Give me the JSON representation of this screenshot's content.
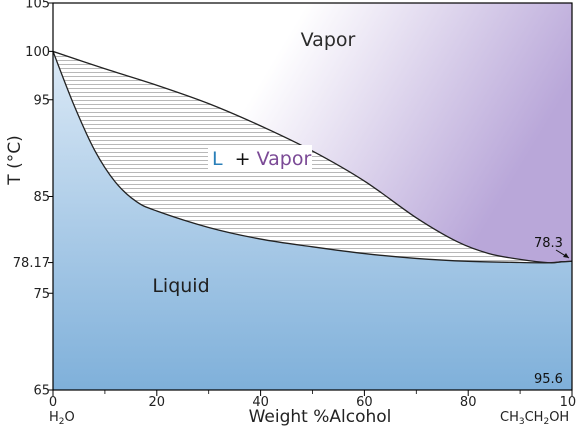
{
  "chart_data": {
    "type": "phase-diagram",
    "title": "",
    "xlabel": "Weight %Alcohol",
    "ylabel": "T (°C)",
    "xlim": [
      0,
      100
    ],
    "ylim": [
      65,
      105
    ],
    "x_ticks": [
      0,
      20,
      40,
      60,
      80,
      100
    ],
    "y_ticks": [
      {
        "value": 65,
        "label": "65"
      },
      {
        "value": 75,
        "label": "75"
      },
      {
        "value": 78.17,
        "label": "78.17"
      },
      {
        "value": 85,
        "label": "85"
      },
      {
        "value": 95,
        "label": "95"
      },
      {
        "value": 100,
        "label": "100"
      },
      {
        "value": 105,
        "label": "105"
      }
    ],
    "x_end_labels": {
      "left": {
        "pre": "H",
        "sub": "2",
        "post": "O"
      },
      "right": {
        "pre": "CH",
        "sub": "3",
        "post": "CH",
        "sub2": "2",
        "post2": "OH"
      }
    },
    "regions": {
      "vapor": "Vapor",
      "liquid": "Liquid",
      "two_phase_l": "L",
      "two_phase_plus": "+",
      "two_phase_vapor": "Vapor"
    },
    "annotations": [
      {
        "text": "78.3",
        "x": 95.6,
        "y": 78.3
      },
      {
        "text": "95.6",
        "x": 95.6,
        "y": 65
      }
    ],
    "curves": {
      "vapor_curve": [
        [
          0,
          100
        ],
        [
          10,
          98.2
        ],
        [
          20,
          96.5
        ],
        [
          30,
          94.6
        ],
        [
          40,
          92.3
        ],
        [
          50,
          89.7
        ],
        [
          60,
          86.6
        ],
        [
          70,
          82.8
        ],
        [
          78,
          80.3
        ],
        [
          84,
          79.1
        ],
        [
          90,
          78.5
        ],
        [
          95.6,
          78.15
        ],
        [
          98,
          78.25
        ],
        [
          100,
          78.3
        ]
      ],
      "liquid_curve": [
        [
          0,
          100
        ],
        [
          4,
          94.5
        ],
        [
          8,
          89.8
        ],
        [
          12,
          86.5
        ],
        [
          16,
          84.5
        ],
        [
          20,
          83.5
        ],
        [
          30,
          81.8
        ],
        [
          40,
          80.6
        ],
        [
          50,
          79.8
        ],
        [
          60,
          79.1
        ],
        [
          70,
          78.6
        ],
        [
          80,
          78.3
        ],
        [
          90,
          78.18
        ],
        [
          95.6,
          78.15
        ],
        [
          98,
          78.25
        ],
        [
          100,
          78.3
        ]
      ]
    },
    "colors": {
      "liquid_top": "#e8f1fa",
      "liquid_bottom": "#7fb0da",
      "vapor_left": "#ffffff",
      "vapor_right": "#b9a7d9",
      "l_color": "#2a7fb8",
      "vapor_color": "#7b4a96"
    },
    "grid": false,
    "legend": "none"
  }
}
